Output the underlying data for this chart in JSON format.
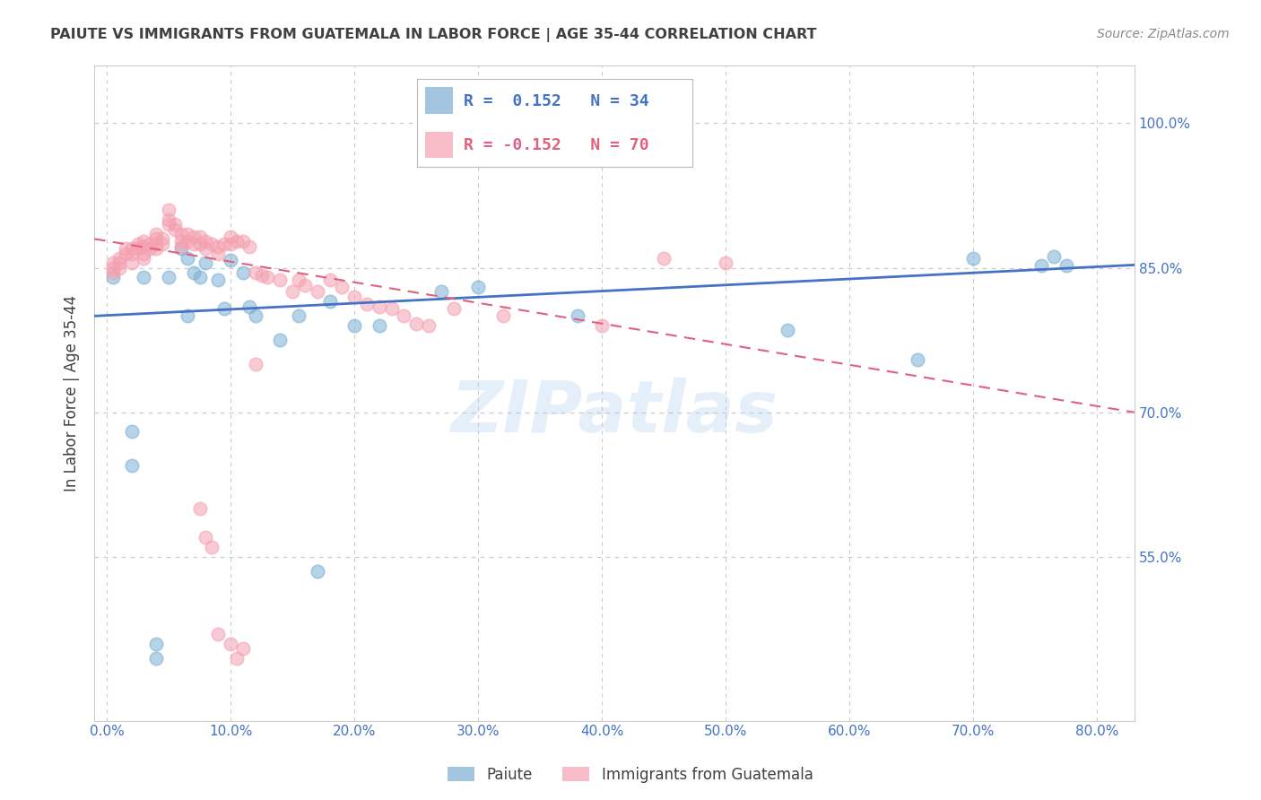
{
  "title": "PAIUTE VS IMMIGRANTS FROM GUATEMALA IN LABOR FORCE | AGE 35-44 CORRELATION CHART",
  "source": "Source: ZipAtlas.com",
  "ylabel": "In Labor Force | Age 35-44",
  "x_tick_labels": [
    "0.0%",
    "",
    "10.0%",
    "",
    "20.0%",
    "",
    "30.0%",
    "",
    "40.0%",
    "",
    "50.0%",
    "",
    "60.0%",
    "",
    "70.0%",
    "",
    "80.0%"
  ],
  "x_tick_values": [
    0.0,
    0.05,
    0.1,
    0.15,
    0.2,
    0.25,
    0.3,
    0.35,
    0.4,
    0.45,
    0.5,
    0.55,
    0.6,
    0.65,
    0.7,
    0.75,
    0.8
  ],
  "y_tick_labels": [
    "55.0%",
    "70.0%",
    "85.0%",
    "100.0%"
  ],
  "y_tick_values": [
    0.55,
    0.7,
    0.85,
    1.0
  ],
  "xlim": [
    -0.01,
    0.83
  ],
  "ylim": [
    0.38,
    1.06
  ],
  "legend_label1": "Paiute",
  "legend_label2": "Immigrants from Guatemala",
  "watermark_text": "ZIPatlas",
  "blue_color": "#7BAFD4",
  "pink_color": "#F4A0B0",
  "blue_line_color": "#4472C4",
  "pink_line_color": "#E06080",
  "title_color": "#404040",
  "axis_label_color": "#404040",
  "tick_label_color": "#4472C4",
  "grid_color": "#CCCCCC",
  "source_color": "#888888",
  "paiute_x": [
    0.005,
    0.02,
    0.02,
    0.03,
    0.04,
    0.05,
    0.06,
    0.065,
    0.07,
    0.075,
    0.08,
    0.09,
    0.095,
    0.1,
    0.11,
    0.115,
    0.12,
    0.14,
    0.155,
    0.18,
    0.2,
    0.22,
    0.27,
    0.3,
    0.38,
    0.55,
    0.655,
    0.7,
    0.755,
    0.765,
    0.775,
    0.04,
    0.17,
    0.065
  ],
  "paiute_y": [
    0.84,
    0.68,
    0.645,
    0.84,
    0.46,
    0.84,
    0.87,
    0.86,
    0.845,
    0.84,
    0.855,
    0.838,
    0.808,
    0.858,
    0.845,
    0.81,
    0.8,
    0.775,
    0.8,
    0.815,
    0.79,
    0.79,
    0.825,
    0.83,
    0.8,
    0.785,
    0.755,
    0.86,
    0.852,
    0.862,
    0.852,
    0.445,
    0.535,
    0.8
  ],
  "guate_x": [
    0.005,
    0.005,
    0.005,
    0.01,
    0.01,
    0.01,
    0.015,
    0.015,
    0.02,
    0.02,
    0.02,
    0.025,
    0.025,
    0.03,
    0.03,
    0.03,
    0.03,
    0.035,
    0.035,
    0.04,
    0.04,
    0.04,
    0.04,
    0.045,
    0.045,
    0.05,
    0.05,
    0.05,
    0.055,
    0.055,
    0.06,
    0.06,
    0.06,
    0.065,
    0.065,
    0.07,
    0.07,
    0.075,
    0.075,
    0.08,
    0.08,
    0.085,
    0.09,
    0.09,
    0.095,
    0.1,
    0.1,
    0.105,
    0.11,
    0.115,
    0.12,
    0.125,
    0.13,
    0.14,
    0.15,
    0.155,
    0.16,
    0.17,
    0.18,
    0.19,
    0.2,
    0.21,
    0.22,
    0.23,
    0.24,
    0.25,
    0.26,
    0.28,
    0.32,
    0.4,
    0.075,
    0.08,
    0.085,
    0.09,
    0.1,
    0.105,
    0.11,
    0.45,
    0.5,
    0.12
  ],
  "guate_y": [
    0.855,
    0.85,
    0.845,
    0.86,
    0.855,
    0.85,
    0.87,
    0.865,
    0.87,
    0.865,
    0.855,
    0.875,
    0.87,
    0.878,
    0.872,
    0.865,
    0.86,
    0.875,
    0.87,
    0.885,
    0.88,
    0.875,
    0.87,
    0.88,
    0.875,
    0.91,
    0.9,
    0.895,
    0.895,
    0.89,
    0.885,
    0.878,
    0.872,
    0.885,
    0.878,
    0.882,
    0.875,
    0.882,
    0.875,
    0.878,
    0.87,
    0.875,
    0.872,
    0.865,
    0.875,
    0.882,
    0.875,
    0.878,
    0.878,
    0.872,
    0.845,
    0.842,
    0.84,
    0.838,
    0.825,
    0.838,
    0.832,
    0.825,
    0.838,
    0.83,
    0.82,
    0.812,
    0.81,
    0.808,
    0.8,
    0.792,
    0.79,
    0.808,
    0.8,
    0.79,
    0.6,
    0.57,
    0.56,
    0.47,
    0.46,
    0.445,
    0.455,
    0.86,
    0.855,
    0.75
  ],
  "blue_trend_x0": -0.01,
  "blue_trend_y0": 0.8,
  "blue_trend_x1": 0.83,
  "blue_trend_y1": 0.853,
  "pink_trend_x0": -0.01,
  "pink_trend_y0": 0.88,
  "pink_trend_x1": 0.83,
  "pink_trend_y1": 0.7
}
